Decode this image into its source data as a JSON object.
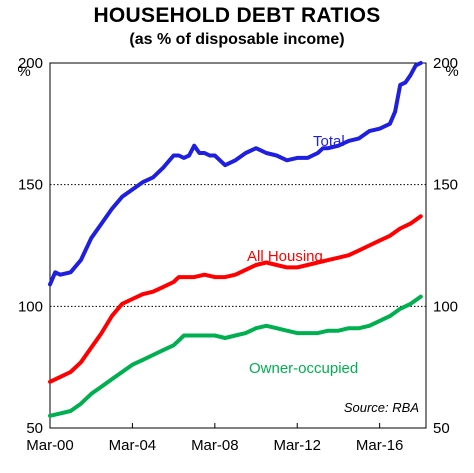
{
  "chart_data": {
    "type": "line",
    "title": "HOUSEHOLD DEBT RATIOS",
    "subtitle": "(as % of disposable income)",
    "y_unit_left": "%",
    "y_unit_right": "%",
    "ylim": [
      50,
      200
    ],
    "yticks": [
      50,
      100,
      150,
      200
    ],
    "xlim": [
      2000.0,
      2018.25
    ],
    "xticks": [
      {
        "x": 2000.0,
        "label": "Mar-00"
      },
      {
        "x": 2004.0,
        "label": "Mar-04"
      },
      {
        "x": 2008.0,
        "label": "Mar-08"
      },
      {
        "x": 2012.0,
        "label": "Mar-12"
      },
      {
        "x": 2016.0,
        "label": "Mar-16"
      }
    ],
    "grid": "horizontal dotted",
    "source": "Source: RBA",
    "colors": {
      "total": "#1f1fe0",
      "housing": "#ff0000",
      "owner": "#00b050"
    },
    "series": [
      {
        "name": "Total",
        "key": "total",
        "x": [
          2000.0,
          2000.25,
          2000.5,
          2001.0,
          2001.5,
          2002.0,
          2002.5,
          2003.0,
          2003.5,
          2004.0,
          2004.5,
          2005.0,
          2005.5,
          2006.0,
          2006.25,
          2006.5,
          2006.75,
          2007.0,
          2007.25,
          2007.5,
          2007.75,
          2008.0,
          2008.5,
          2009.0,
          2009.5,
          2010.0,
          2010.25,
          2010.5,
          2011.0,
          2011.5,
          2012.0,
          2012.5,
          2013.0,
          2013.25,
          2013.5,
          2014.0,
          2014.5,
          2015.0,
          2015.5,
          2016.0,
          2016.5,
          2016.75,
          2017.0,
          2017.25,
          2017.5,
          2017.75,
          2018.0
        ],
        "values": [
          109,
          114,
          113,
          114,
          119,
          128,
          134,
          140,
          145,
          148,
          151,
          153,
          157,
          162,
          162,
          161,
          162,
          166,
          163,
          163,
          162,
          162,
          158,
          160,
          163,
          165,
          164,
          163,
          162,
          160,
          161,
          161,
          163,
          165,
          165,
          166,
          168,
          169,
          172,
          173,
          175,
          180,
          191,
          192,
          195,
          199,
          200
        ]
      },
      {
        "name": "All Housing",
        "key": "housing",
        "x": [
          2000.0,
          2000.5,
          2001.0,
          2001.5,
          2002.0,
          2002.5,
          2003.0,
          2003.5,
          2004.0,
          2004.5,
          2005.0,
          2005.5,
          2006.0,
          2006.25,
          2006.5,
          2006.75,
          2007.0,
          2007.5,
          2008.0,
          2008.5,
          2009.0,
          2009.5,
          2010.0,
          2010.5,
          2011.0,
          2011.5,
          2012.0,
          2012.5,
          2013.0,
          2013.5,
          2014.0,
          2014.5,
          2015.0,
          2015.5,
          2016.0,
          2016.5,
          2017.0,
          2017.5,
          2018.0
        ],
        "values": [
          69,
          71,
          73,
          77,
          83,
          89,
          96,
          101,
          103,
          105,
          106,
          108,
          110,
          112,
          112,
          112,
          112,
          113,
          112,
          112,
          113,
          115,
          117,
          118,
          117,
          116,
          116,
          117,
          118,
          119,
          120,
          121,
          123,
          125,
          127,
          129,
          132,
          134,
          137
        ]
      },
      {
        "name": "Owner-occupied",
        "key": "owner",
        "x": [
          2000.0,
          2000.5,
          2001.0,
          2001.5,
          2002.0,
          2002.5,
          2003.0,
          2003.5,
          2004.0,
          2004.5,
          2005.0,
          2005.5,
          2006.0,
          2006.25,
          2006.5,
          2006.75,
          2007.0,
          2007.5,
          2008.0,
          2008.5,
          2009.0,
          2009.5,
          2010.0,
          2010.5,
          2011.0,
          2011.5,
          2012.0,
          2012.5,
          2013.0,
          2013.5,
          2014.0,
          2014.5,
          2015.0,
          2015.5,
          2016.0,
          2016.5,
          2017.0,
          2017.5,
          2018.0
        ],
        "values": [
          55,
          56,
          57,
          60,
          64,
          67,
          70,
          73,
          76,
          78,
          80,
          82,
          84,
          86,
          88,
          88,
          88,
          88,
          88,
          87,
          88,
          89,
          91,
          92,
          91,
          90,
          89,
          89,
          89,
          90,
          90,
          91,
          91,
          92,
          94,
          96,
          99,
          101,
          104
        ]
      }
    ]
  }
}
